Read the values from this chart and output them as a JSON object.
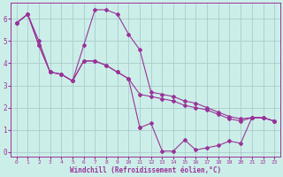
{
  "xlabel": "Windchill (Refroidissement éolien,°C)",
  "background_color": "#cceee8",
  "grid_color": "#aacccc",
  "line_color": "#993399",
  "xlim": [
    -0.5,
    23.5
  ],
  "ylim": [
    -0.2,
    6.7
  ],
  "xticks": [
    0,
    1,
    2,
    3,
    4,
    5,
    6,
    7,
    8,
    9,
    10,
    11,
    12,
    13,
    14,
    15,
    16,
    17,
    18,
    19,
    20,
    21,
    22,
    23
  ],
  "yticks": [
    0,
    1,
    2,
    3,
    4,
    5,
    6
  ],
  "series1_x": [
    0,
    1,
    2,
    3,
    4,
    5,
    6,
    7,
    8,
    9,
    10,
    11,
    12,
    13,
    14,
    15,
    16,
    17,
    18,
    19,
    20,
    21,
    22,
    23
  ],
  "series1_y": [
    5.8,
    6.2,
    5.0,
    3.6,
    3.5,
    3.2,
    4.8,
    6.4,
    6.4,
    6.2,
    5.3,
    4.6,
    2.7,
    2.6,
    2.5,
    2.3,
    2.2,
    2.0,
    1.8,
    1.6,
    1.5,
    1.55,
    1.55,
    1.4
  ],
  "series2_x": [
    0,
    1,
    2,
    3,
    4,
    5,
    6,
    7,
    8,
    9,
    10,
    11
  ],
  "series2_y": [
    5.8,
    6.2,
    4.8,
    3.6,
    3.5,
    3.2,
    4.1,
    4.1,
    3.9,
    3.6,
    3.3,
    1.1
  ],
  "series3_x": [
    11,
    12,
    13,
    14,
    15,
    16,
    17,
    18,
    19,
    20,
    21,
    22,
    23
  ],
  "series3_y": [
    1.1,
    1.3,
    0.05,
    0.05,
    0.55,
    0.1,
    0.2,
    0.3,
    0.5,
    0.4,
    1.55,
    1.55,
    1.4
  ],
  "series4_x": [
    0,
    1,
    2,
    3,
    4,
    5,
    6,
    7,
    8,
    9,
    10,
    11,
    12,
    13,
    14,
    15,
    16,
    17,
    18,
    19,
    20,
    21,
    22,
    23
  ],
  "series4_y": [
    5.8,
    6.2,
    4.8,
    3.6,
    3.5,
    3.2,
    4.1,
    4.1,
    3.9,
    3.6,
    3.3,
    2.6,
    2.5,
    2.4,
    2.3,
    2.1,
    2.0,
    1.9,
    1.7,
    1.5,
    1.4,
    1.55,
    1.55,
    1.4
  ]
}
